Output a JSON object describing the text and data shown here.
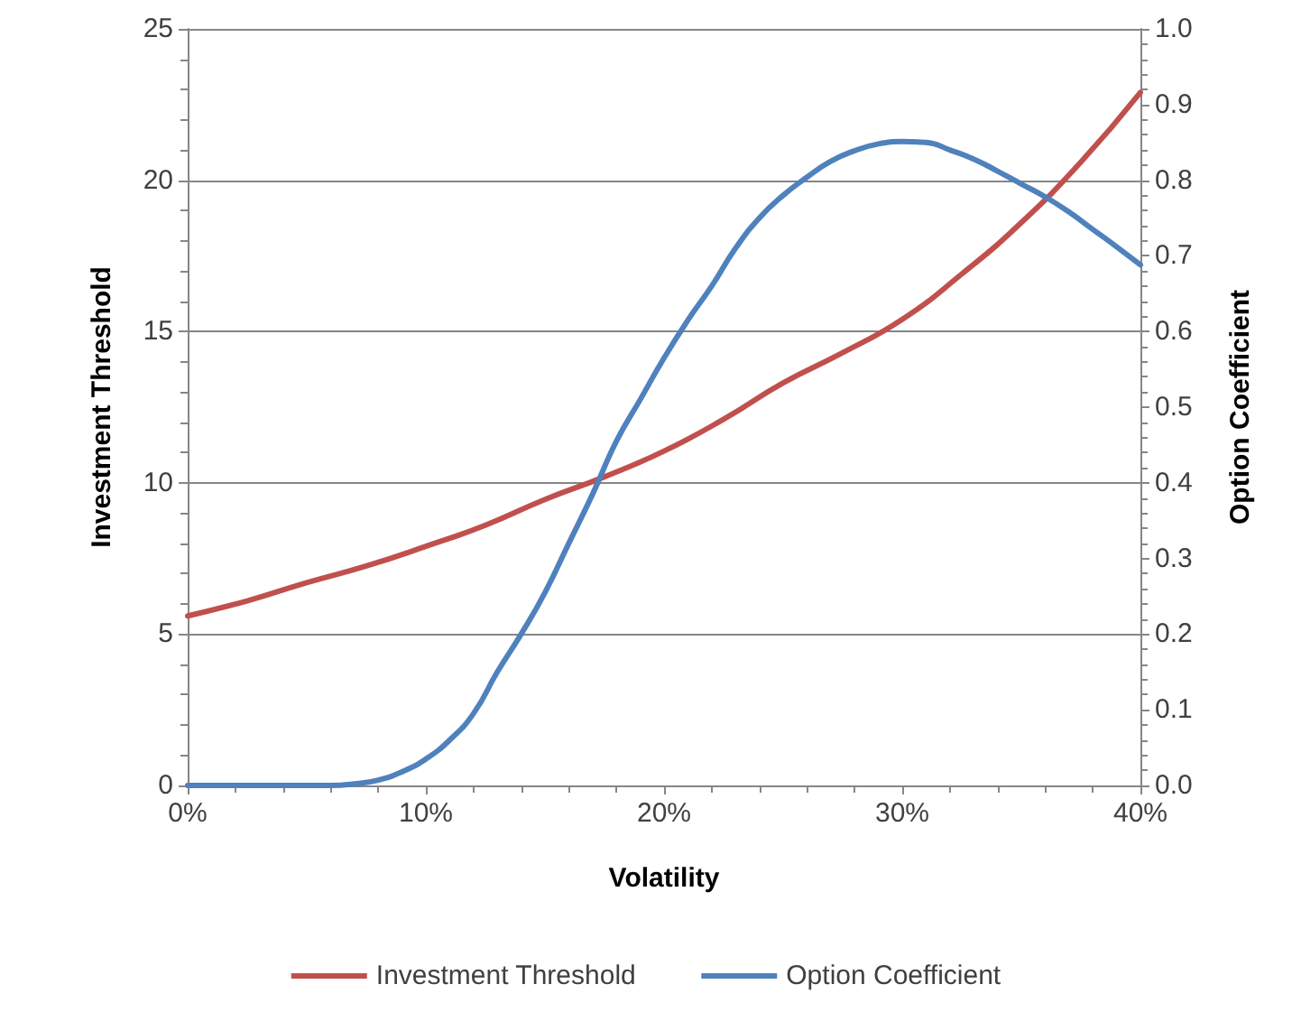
{
  "chart_data": {
    "type": "line",
    "xlabel": "Volatility",
    "ylabel": "Investment Threshold",
    "y2label": "Option Coefficient",
    "xlim": [
      0,
      40
    ],
    "xticks": [
      {
        "value": 0,
        "label": "0%"
      },
      {
        "value": 10,
        "label": "10%"
      },
      {
        "value": 20,
        "label": "20%"
      },
      {
        "value": 30,
        "label": "30%"
      },
      {
        "value": 40,
        "label": "40%"
      }
    ],
    "ylim": [
      0,
      25
    ],
    "yticks": [
      0,
      5,
      10,
      15,
      20,
      25
    ],
    "y2lim": [
      0,
      1
    ],
    "y2ticks": [
      {
        "value": 0,
        "label": "0.0"
      },
      {
        "value": 0.1,
        "label": "0.1"
      },
      {
        "value": 0.2,
        "label": "0.2"
      },
      {
        "value": 0.3,
        "label": "0.3"
      },
      {
        "value": 0.4,
        "label": "0.4"
      },
      {
        "value": 0.5,
        "label": "0.5"
      },
      {
        "value": 0.6,
        "label": "0.6"
      },
      {
        "value": 0.7,
        "label": "0.7"
      },
      {
        "value": 0.8,
        "label": "0.8"
      },
      {
        "value": 0.9,
        "label": "0.9"
      },
      {
        "value": 1,
        "label": "1.0"
      }
    ],
    "grid": "y",
    "legend": "bottom",
    "series": [
      {
        "name": "Investment Threshold",
        "color": "#c0504d",
        "x": [
          0,
          2.5,
          5,
          7.5,
          10,
          12.5,
          15,
          17.5,
          20,
          22.5,
          25,
          27.5,
          30,
          32.5,
          35,
          37.5,
          40
        ],
        "values": [
          5.6,
          6.1,
          6.7,
          7.25,
          7.9,
          8.6,
          9.45,
          10.2,
          11.05,
          12.1,
          13.3,
          14.3,
          15.4,
          16.9,
          18.6,
          20.6,
          22.9
        ]
      },
      {
        "name": "Option Coefficient",
        "color": "#4f81bd",
        "axis": "y2",
        "x": [
          0,
          2,
          4,
          6,
          7,
          8,
          9,
          10,
          11,
          12,
          13,
          14,
          15,
          16,
          17,
          18,
          19,
          20,
          21,
          22,
          23,
          24,
          25,
          26,
          27,
          28,
          29,
          30,
          31,
          32,
          33,
          34,
          35,
          36,
          37,
          38,
          39,
          40
        ],
        "values": [
          0,
          0,
          0,
          0,
          0.002,
          0.007,
          0.018,
          0.035,
          0.06,
          0.095,
          0.15,
          0.2,
          0.255,
          0.32,
          0.385,
          0.455,
          0.51,
          0.565,
          0.615,
          0.66,
          0.71,
          0.75,
          0.78,
          0.804,
          0.825,
          0.839,
          0.848,
          0.851,
          0.85,
          0.84,
          0.828,
          0.812,
          0.795,
          0.778,
          0.758,
          0.735,
          0.712,
          0.688
        ]
      }
    ]
  }
}
